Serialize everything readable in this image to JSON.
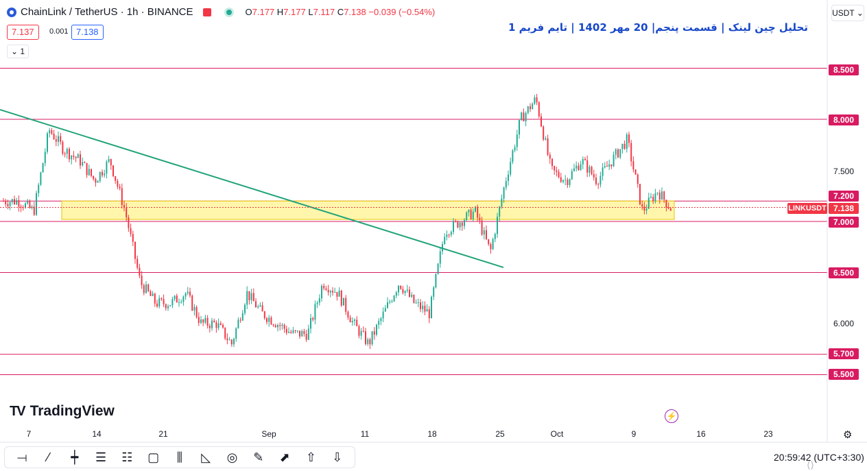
{
  "header": {
    "symbol_line": "ChainLink / TetherUS · 1h · BINANCE",
    "open_label": "O",
    "open": "7.177",
    "high_label": "H",
    "high": "7.177",
    "low_label": "L",
    "low": "7.117",
    "close_label": "C",
    "close": "7.138",
    "change": "−0.039 (−0.54%)"
  },
  "price_boxes": {
    "sell": "7.137",
    "spread": "0.001",
    "buy": "7.138"
  },
  "collapse_label": "⌄ 1",
  "currency": "USDT ⌄",
  "title": "تحلیل چین لینک | قسمت پنجم| 20 مهر 1402 | تایم فریم 1",
  "price_axis": {
    "labels": [
      "8.500",
      "8.000",
      "7.500",
      "7.200",
      "7.000",
      "6.500",
      "6.000",
      "5.700",
      "5.500"
    ],
    "symbol_tag": "LINKUSDT",
    "last_price": "7.138"
  },
  "time_axis": [
    "7",
    "14",
    "21",
    "Sep",
    "11",
    "18",
    "25",
    "Oct",
    "9",
    "16",
    "23"
  ],
  "branding": "TradingView",
  "clock": "20:59:42  (UTC+3:30)",
  "colors": {
    "level_line": "#d81b60",
    "trendline": "#22a37a",
    "zone": "#fff176",
    "up": "#22ab94",
    "down": "#f23645"
  },
  "toolbar": [
    {
      "name": "horizontal-ray-tool-icon",
      "glyph": "⟞"
    },
    {
      "name": "trend-line-tool-icon",
      "glyph": "⁄"
    },
    {
      "name": "vertical-line-tool-icon",
      "glyph": "┿"
    },
    {
      "name": "parallel-channel-tool-icon",
      "glyph": "☰"
    },
    {
      "name": "fib-retracement-tool-icon",
      "glyph": "☷"
    },
    {
      "name": "rectangle-tool-icon",
      "glyph": "▢"
    },
    {
      "name": "long-position-tool-icon",
      "glyph": "⫼"
    },
    {
      "name": "triangle-pattern-tool-icon",
      "glyph": "◺"
    },
    {
      "name": "circle-tool-icon",
      "glyph": "◎"
    },
    {
      "name": "brush-tool-icon",
      "glyph": "✎"
    },
    {
      "name": "arrow-tool-icon",
      "glyph": "⬈"
    },
    {
      "name": "arrow-up-tool-icon",
      "glyph": "⇧"
    },
    {
      "name": "arrow-down-tool-icon",
      "glyph": "⇩"
    }
  ],
  "chart_data": {
    "type": "candlestick",
    "title": "",
    "xlabel": "",
    "ylabel": "",
    "ylim": [
      5.3,
      8.6
    ],
    "x": [
      "7",
      "14",
      "21",
      "Sep",
      "11",
      "18",
      "25",
      "Oct",
      "9",
      "16",
      "23"
    ],
    "levels": [
      8.5,
      8.0,
      7.2,
      7.0,
      6.5,
      5.7,
      5.5
    ],
    "zone": {
      "from": 7.02,
      "to": 7.2
    },
    "trendline": {
      "from_price": 8.0,
      "to_price": 6.55
    },
    "last_price": 7.138,
    "path": [
      7.2,
      7.2,
      7.1,
      7.9,
      7.7,
      7.6,
      7.4,
      7.6,
      7.1,
      6.4,
      6.2,
      6.2,
      6.3,
      6.0,
      6.0,
      5.8,
      6.3,
      6.1,
      6.0,
      5.9,
      5.9,
      6.4,
      6.3,
      6.0,
      5.8,
      6.1,
      6.4,
      6.2,
      6.1,
      6.9,
      7.0,
      7.1,
      6.7,
      7.4,
      8.0,
      8.2,
      7.5,
      7.4,
      7.6,
      7.4,
      7.6,
      7.8,
      7.1,
      7.3,
      7.1
    ],
    "grid": false,
    "legend": "none"
  }
}
